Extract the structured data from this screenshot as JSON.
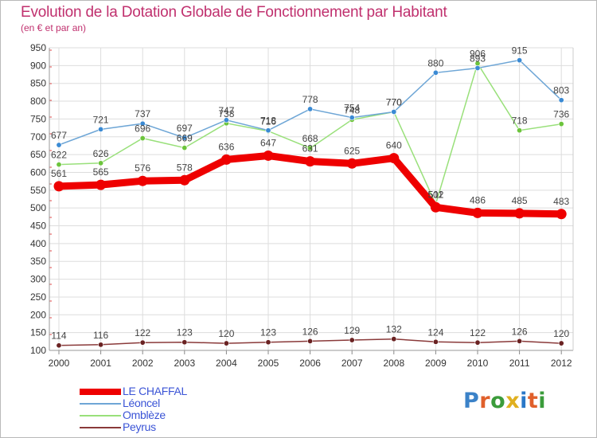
{
  "title": "Evolution de la Dotation Globale de Fonctionnement par Habitant",
  "subtitle": "(en € et par an)",
  "logo": {
    "text": "Proxiti",
    "colors": [
      "#3b82c8",
      "#e0602b",
      "#3b9c3b",
      "#e0b020",
      "#2a78c8",
      "#e0602b",
      "#3b9c3b"
    ]
  },
  "chart_data": {
    "type": "line",
    "title": "Evolution de la Dotation Globale de Fonctionnement par Habitant",
    "subtitle": "(en € et par an)",
    "xlabel": "",
    "ylabel": "",
    "ylim": [
      100,
      950
    ],
    "yticks": [
      "100",
      "150",
      "200",
      "250",
      "300",
      "350",
      "400",
      "450",
      "500",
      "550",
      "600",
      "650",
      "700",
      "750",
      "800",
      "850",
      "900",
      "950"
    ],
    "categories": [
      "2000",
      "2001",
      "2002",
      "2003",
      "2004",
      "2005",
      "2006",
      "2007",
      "2008",
      "2009",
      "2010",
      "2011",
      "2012"
    ],
    "grid": true,
    "legend_position": "bottom-left",
    "series": [
      {
        "name": "LE CHAFFAL",
        "color": "#ee0000",
        "emphasis": true,
        "values": [
          561,
          565,
          576,
          578,
          636,
          647,
          631,
          625,
          640,
          502,
          486,
          485,
          483
        ],
        "labels": [
          "561",
          "565",
          "576",
          "578",
          "636",
          "647",
          "631",
          "625",
          "640",
          "502",
          "486",
          "485",
          "483"
        ]
      },
      {
        "name": "Léoncel",
        "color": "#6ea6d6",
        "point": "#3a8ad4",
        "values": [
          677,
          721,
          737,
          697,
          747,
          718,
          778,
          754,
          770,
          880,
          893,
          915,
          803
        ],
        "labels": [
          "677",
          "721",
          "737",
          "697",
          "747",
          "718",
          "778",
          "754",
          "770",
          "880",
          "893",
          "915",
          "803"
        ]
      },
      {
        "name": "Omblèze",
        "color": "#99e07a",
        "point": "#6cc43c",
        "values": [
          622,
          626,
          696,
          669,
          738,
          716,
          668,
          748,
          770,
          511,
          906,
          718,
          736
        ],
        "labels": [
          "622",
          "626",
          "696",
          "669",
          "738",
          "716",
          "668",
          "748",
          "770",
          "511",
          "906",
          "718",
          "736"
        ]
      },
      {
        "name": "Peyrus",
        "color": "#8a3a3a",
        "point": "#6a2222",
        "values": [
          114,
          116,
          122,
          123,
          120,
          123,
          126,
          129,
          132,
          124,
          122,
          126,
          120
        ],
        "labels": [
          "114",
          "116",
          "122",
          "123",
          "120",
          "123",
          "126",
          "129",
          "132",
          "124",
          "122",
          "126",
          "120"
        ]
      }
    ]
  }
}
